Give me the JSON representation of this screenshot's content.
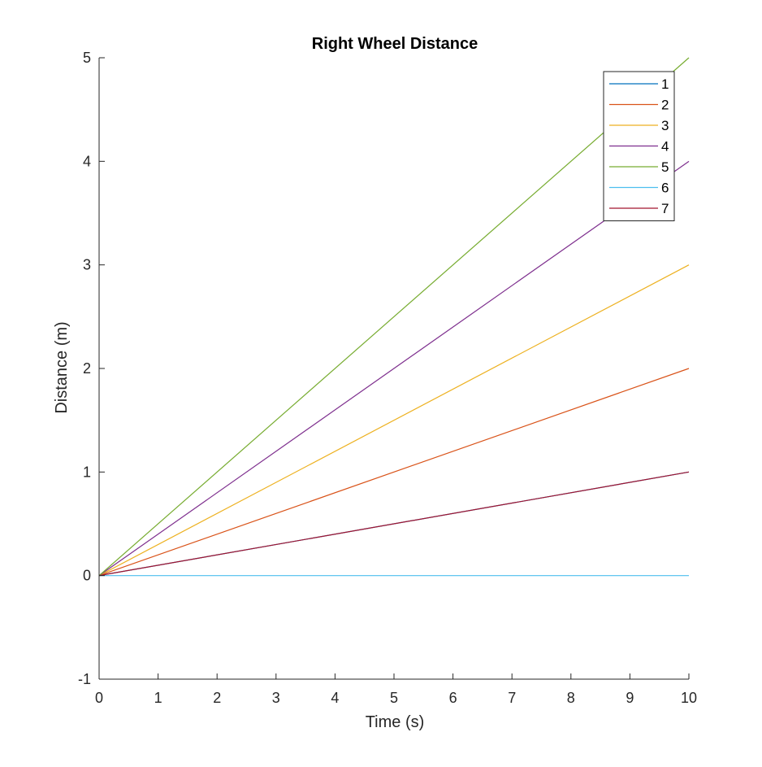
{
  "chart_data": {
    "type": "line",
    "title": "Right Wheel Distance",
    "xlabel": "Time (s)",
    "ylabel": "Distance (m)",
    "xlim": [
      0,
      10
    ],
    "ylim": [
      -1,
      5
    ],
    "xticks": [
      "0",
      "1",
      "2",
      "3",
      "4",
      "5",
      "6",
      "7",
      "8",
      "9",
      "10"
    ],
    "yticks": [
      "-1",
      "0",
      "1",
      "2",
      "3",
      "4",
      "5"
    ],
    "grid": false,
    "legend_position": "top-right",
    "series": [
      {
        "name": "1",
        "color": "#0072BD",
        "x": [
          0,
          10
        ],
        "y": [
          0,
          1
        ]
      },
      {
        "name": "2",
        "color": "#D95319",
        "x": [
          0,
          10
        ],
        "y": [
          0,
          2
        ]
      },
      {
        "name": "3",
        "color": "#EDB120",
        "x": [
          0,
          10
        ],
        "y": [
          0,
          3
        ]
      },
      {
        "name": "4",
        "color": "#7E2F8E",
        "x": [
          0,
          10
        ],
        "y": [
          0,
          4
        ]
      },
      {
        "name": "5",
        "color": "#77AC30",
        "x": [
          0,
          10
        ],
        "y": [
          0,
          5
        ]
      },
      {
        "name": "6",
        "color": "#4DBEEE",
        "x": [
          0,
          10
        ],
        "y": [
          0,
          0
        ]
      },
      {
        "name": "7",
        "color": "#A2142F",
        "x": [
          0,
          10
        ],
        "y": [
          0,
          1
        ]
      }
    ]
  }
}
